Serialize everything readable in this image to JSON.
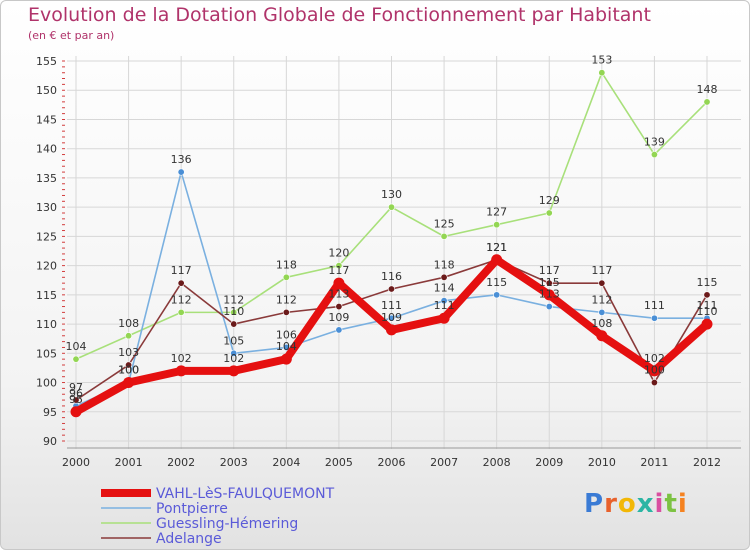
{
  "title": "Evolution de la Dotation Globale de Fonctionnement par Habitant",
  "subtitle": "(en € et par an)",
  "brand": "Proxiti",
  "colors": {
    "title": "#b0336a",
    "grid": "#d7d7d7",
    "axis_tick_red": "#d23c3c"
  },
  "chart_data": {
    "type": "line",
    "title": "Evolution de la Dotation Globale de Fonctionnement par Habitant",
    "subtitle": "(en € et par an)",
    "x": [
      "2000",
      "2001",
      "2002",
      "2003",
      "2004",
      "2005",
      "2006",
      "2007",
      "2008",
      "2009",
      "2010",
      "2011",
      "2012"
    ],
    "ylim": [
      90,
      155
    ],
    "yticks": [
      90,
      95,
      100,
      105,
      110,
      115,
      120,
      125,
      130,
      135,
      140,
      145,
      150,
      155
    ],
    "grid": true,
    "legend_position": "bottom-left",
    "series": [
      {
        "name": "Guessling-Hémering",
        "color": "#93d653",
        "line_color": "#a8e07a",
        "values": [
          104,
          108,
          112,
          112,
          118,
          120,
          130,
          125,
          127,
          129,
          153,
          139,
          148
        ],
        "labels": [
          "104",
          "108",
          "112",
          "112",
          "118",
          "120",
          "130",
          "125",
          "127",
          "129",
          "153",
          "139",
          "148"
        ]
      },
      {
        "name": "Pontpierre",
        "color": "#4a8fd6",
        "line_color": "#7ab0e0",
        "values": [
          96,
          100,
          136,
          105,
          106,
          109,
          111,
          114,
          115,
          113,
          112,
          111,
          111
        ],
        "labels": [
          "96",
          "100",
          "136",
          "105",
          "106",
          "109",
          "111",
          "114",
          "115",
          "113",
          "112",
          "111",
          "111"
        ]
      },
      {
        "name": "Adelange",
        "color": "#6b1a1a",
        "line_color": "#8a3a3a",
        "values": [
          97,
          103,
          117,
          110,
          112,
          113,
          116,
          118,
          121,
          117,
          117,
          100,
          115
        ],
        "labels": [
          "97",
          "103",
          "117",
          "110",
          "112",
          "113",
          "116",
          "118",
          "121",
          "117",
          "117",
          "100",
          "115"
        ]
      },
      {
        "name": "VAHL-LèS-FAULQUEMONT",
        "color": "#e51010",
        "line_color": "#e51010",
        "values": [
          95,
          100,
          102,
          102,
          104,
          117,
          109,
          111,
          121,
          115,
          108,
          102,
          110
        ],
        "labels": [
          "95",
          "100",
          "102",
          "102",
          "104",
          "117",
          "109",
          "111",
          "121",
          "115",
          "108",
          "102",
          "110"
        ]
      }
    ],
    "legend": [
      "VAHL-LèS-FAULQUEMONT",
      "Pontpierre",
      "Guessling-Hémering",
      "Adelange"
    ]
  }
}
